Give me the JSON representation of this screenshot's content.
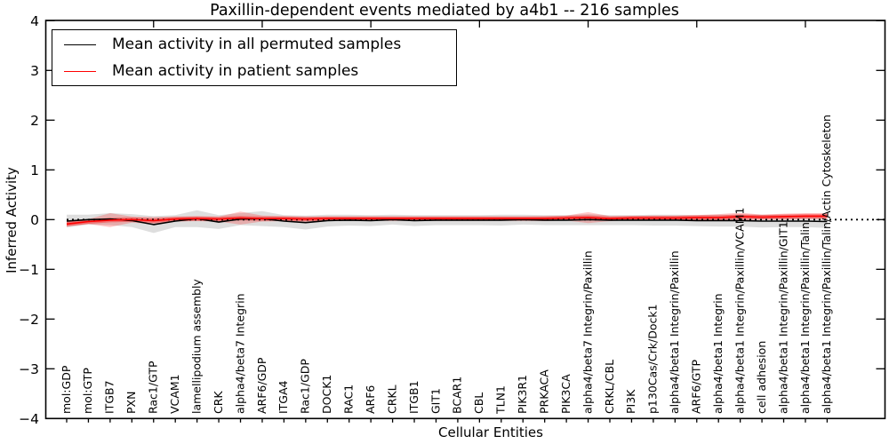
{
  "window": {
    "kind": "matplotlib-figure"
  },
  "accent_colors": {
    "permuted": "#000000",
    "patient": "#ff0000"
  },
  "legend": {
    "items": [
      {
        "label": "Mean activity in all permuted samples",
        "color": "#000000"
      },
      {
        "label": "Mean activity in patient samples",
        "color": "#ff0000"
      }
    ]
  },
  "chart_data": {
    "type": "line",
    "title": "Paxillin-dependent events mediated by a4b1 -- 216 samples",
    "xlabel": "Cellular Entities",
    "ylabel": "Inferred Activity",
    "ylim": [
      -4,
      4
    ],
    "grid": false,
    "legend_position": "upper left",
    "yticks": [
      {
        "value": 4,
        "label": "4"
      },
      {
        "value": 3,
        "label": "3"
      },
      {
        "value": 2,
        "label": "2"
      },
      {
        "value": 1,
        "label": "1"
      },
      {
        "value": 0,
        "label": "0"
      },
      {
        "value": -1,
        "label": "−1"
      },
      {
        "value": -2,
        "label": "−2"
      },
      {
        "value": -3,
        "label": "−3"
      },
      {
        "value": -4,
        "label": "−4"
      }
    ],
    "top_tick_indices": [
      4,
      9,
      14,
      19,
      24,
      29,
      34
    ],
    "categories": [
      "mol:GDP",
      "mol:GTP",
      "ITGB7",
      "PXN",
      "Rac1/GTP",
      "VCAM1",
      "lamellipodium assembly",
      "CRK",
      "alpha4/beta7 Integrin",
      "ARF6/GDP",
      "ITGA4",
      "Rac1/GDP",
      "DOCK1",
      "RAC1",
      "ARF6",
      "CRKL",
      "ITGB1",
      "GIT1",
      "BCAR1",
      "CBL",
      "TLN1",
      "PIK3R1",
      "PRKACA",
      "PIK3CA",
      "alpha4/beta7 Integrin/Paxillin",
      "CRKL/CBL",
      "PI3K",
      "p130Cas/Crk/Dock1",
      "alpha4/beta1 Integrin/Paxillin",
      "ARF6/GTP",
      "alpha4/beta1 Integrin",
      "alpha4/beta1 Integrin/Paxillin/VCAM1",
      "cell adhesion",
      "alpha4/beta1 Integrin/Paxillin/GIT1",
      "alpha4/beta1 Integrin/Paxillin/Talin",
      "alpha4/beta1 Integrin/Paxillin/Talin/Actin Cytoskeleton"
    ],
    "series": [
      {
        "name": "Mean activity in all permuted samples",
        "color": "#000000",
        "band_color": "rgba(0,0,0,0.13)",
        "values": [
          -0.03,
          0.0,
          0.01,
          -0.02,
          -0.1,
          -0.03,
          0.02,
          -0.05,
          0.01,
          0.02,
          -0.03,
          -0.06,
          -0.02,
          -0.01,
          -0.02,
          0.0,
          -0.02,
          -0.01,
          -0.01,
          -0.01,
          -0.01,
          0.0,
          -0.01,
          -0.01,
          0.0,
          -0.01,
          -0.01,
          -0.01,
          -0.01,
          -0.02,
          -0.02,
          -0.02,
          -0.03,
          -0.03,
          -0.03,
          -0.04
        ],
        "band_halfwidth": [
          0.13,
          0.1,
          0.12,
          0.13,
          0.17,
          0.12,
          0.17,
          0.14,
          0.12,
          0.15,
          0.12,
          0.14,
          0.12,
          0.11,
          0.11,
          0.1,
          0.11,
          0.1,
          0.1,
          0.1,
          0.11,
          0.1,
          0.1,
          0.1,
          0.11,
          0.1,
          0.1,
          0.11,
          0.11,
          0.11,
          0.12,
          0.12,
          0.13,
          0.12,
          0.12,
          0.13
        ]
      },
      {
        "name": "Mean activity in patient samples",
        "color": "#ff0000",
        "band_color": "rgba(255,0,0,0.22)",
        "inner_band_color": "rgba(255,0,0,0.35)",
        "inner_band_halfwidth": 0.045,
        "values": [
          -0.09,
          -0.04,
          -0.01,
          0.0,
          -0.02,
          0.01,
          0.02,
          0.01,
          0.03,
          0.02,
          0.02,
          0.01,
          0.02,
          0.02,
          0.02,
          0.02,
          0.02,
          0.02,
          0.02,
          0.02,
          0.02,
          0.02,
          0.02,
          0.03,
          0.04,
          0.02,
          0.03,
          0.03,
          0.03,
          0.04,
          0.04,
          0.06,
          0.05,
          0.06,
          0.07,
          0.07
        ],
        "band_halfwidth": [
          0.05,
          0.05,
          0.14,
          0.06,
          0.07,
          0.05,
          0.05,
          0.05,
          0.13,
          0.06,
          0.05,
          0.05,
          0.04,
          0.04,
          0.04,
          0.04,
          0.04,
          0.04,
          0.04,
          0.04,
          0.04,
          0.04,
          0.05,
          0.05,
          0.11,
          0.05,
          0.04,
          0.05,
          0.05,
          0.05,
          0.07,
          0.08,
          0.05,
          0.06,
          0.06,
          0.06
        ]
      }
    ],
    "zero_line": {
      "value": 0,
      "style": "dotted",
      "color": "#000000"
    }
  }
}
